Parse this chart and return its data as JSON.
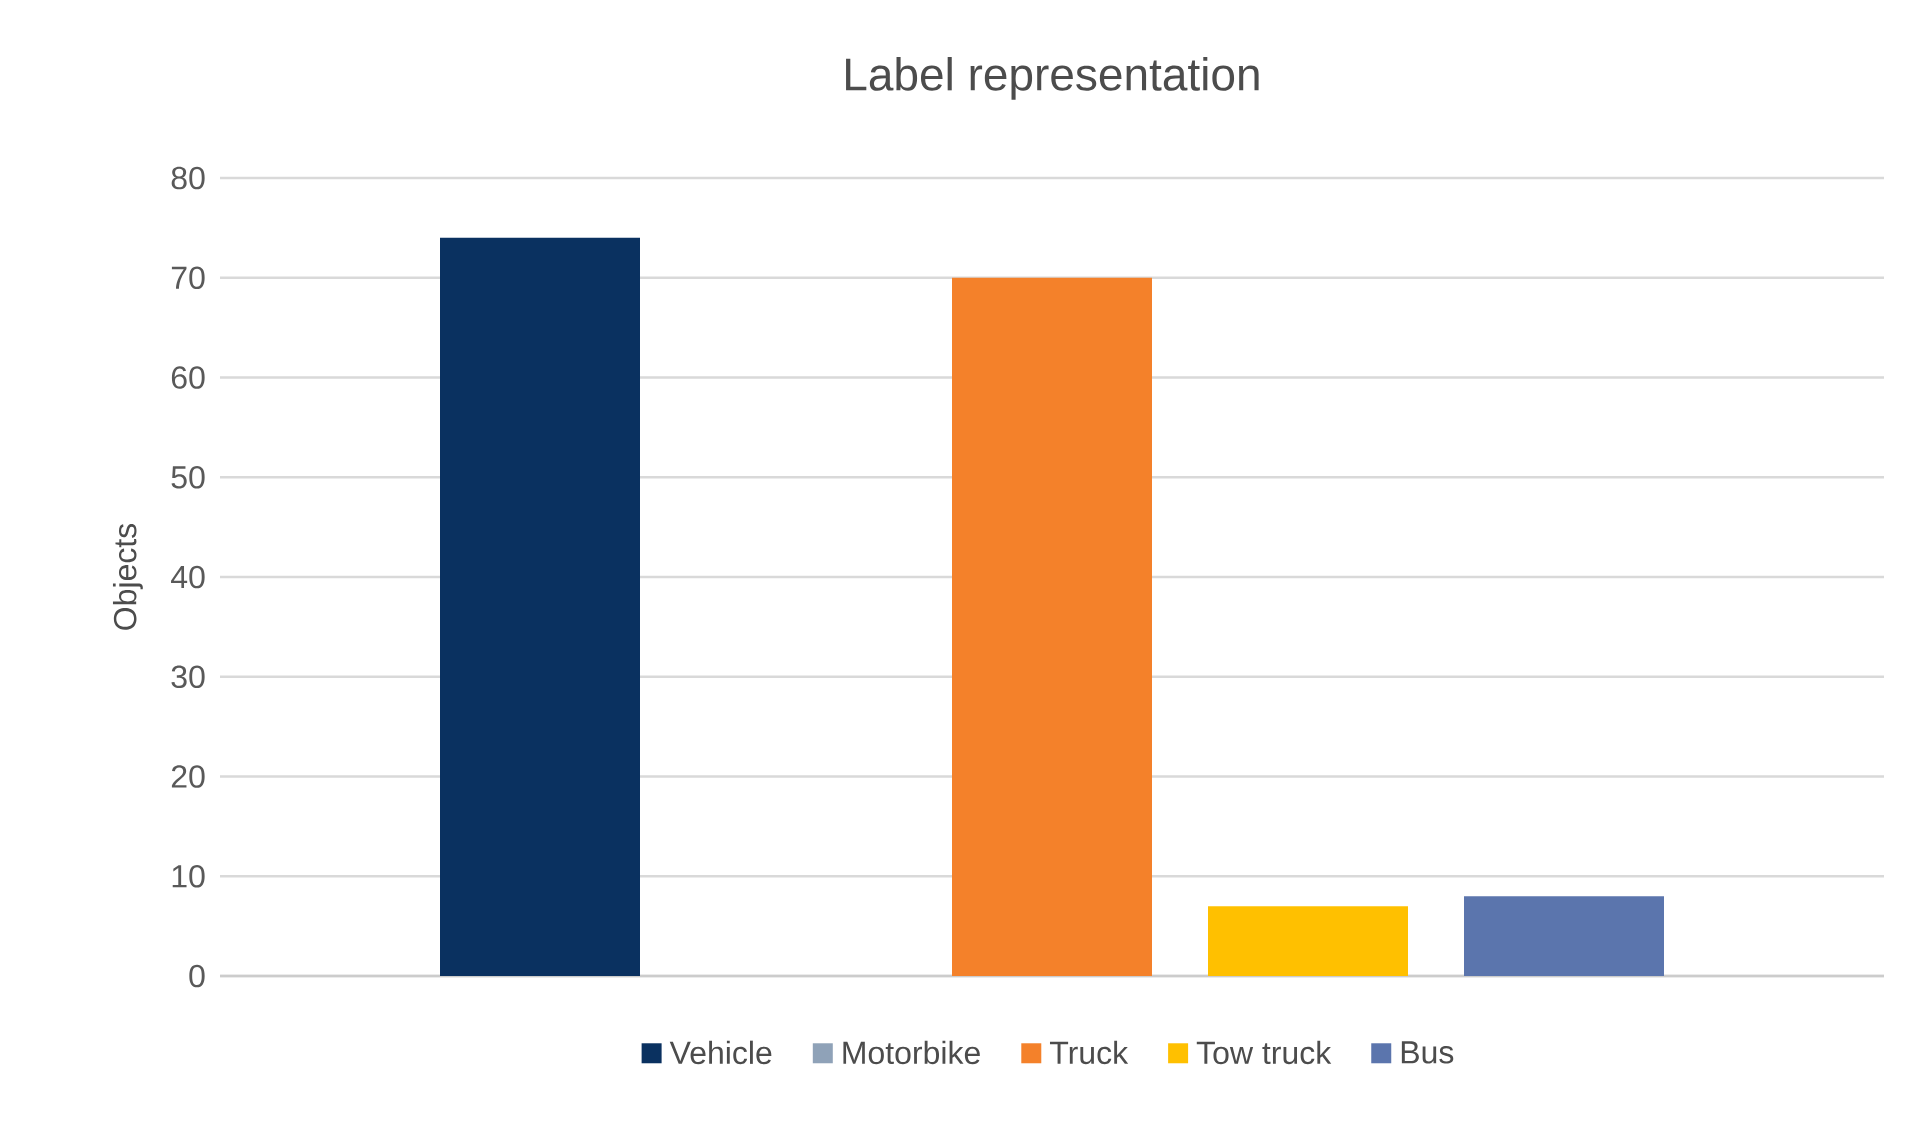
{
  "chart_data": {
    "type": "bar",
    "title": "Label representation",
    "ylabel": "Objects",
    "categories": [
      null
    ],
    "series": [
      {
        "name": "Vehicle",
        "color": "#0a3160",
        "values": [
          74
        ]
      },
      {
        "name": "Motorbike",
        "color": "#8fa2b8",
        "values": [
          0
        ]
      },
      {
        "name": "Truck",
        "color": "#f4812a",
        "values": [
          70
        ]
      },
      {
        "name": "Tow truck",
        "color": "#ffc000",
        "values": [
          7
        ]
      },
      {
        "name": "Bus",
        "color": "#5b75ad",
        "values": [
          8
        ]
      }
    ],
    "ylim": [
      0,
      80
    ],
    "yticks": [
      0,
      10,
      20,
      30,
      40,
      50,
      60,
      70,
      80
    ],
    "grid": "y",
    "legend": "bottom",
    "tick_labels": "y"
  }
}
